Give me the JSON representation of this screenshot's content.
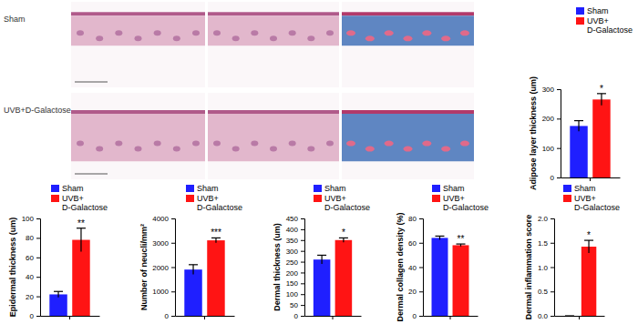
{
  "figure": {
    "row_labels": [
      "Sham",
      "UVB+D-Galactose"
    ]
  },
  "chart_data": [
    {
      "type": "bar",
      "y_label": "Adipose layer thickness (um)",
      "categories": [
        null
      ],
      "legend": "top",
      "grid": false,
      "series": [
        {
          "name": "Sham",
          "color": "#1f1fff",
          "values": [
            175
          ],
          "errors": [
            18
          ]
        },
        {
          "name": "UVB+ D-Galactose",
          "color": "#ff1414",
          "values": [
            265
          ],
          "errors": [
            20
          ]
        }
      ],
      "annotation": "*",
      "ylim": [
        0,
        300
      ],
      "yticks": [
        0,
        100,
        200,
        300
      ]
    },
    {
      "type": "bar",
      "y_label": "Epidermal thickness (um)",
      "categories": [
        null
      ],
      "legend": "top",
      "grid": false,
      "series": [
        {
          "name": "Sham",
          "color": "#1f1fff",
          "values": [
            22
          ],
          "errors": [
            3
          ]
        },
        {
          "name": "UVB+ D-Galactose",
          "color": "#ff1414",
          "values": [
            78
          ],
          "errors": [
            12
          ]
        }
      ],
      "annotation": "**",
      "ylim": [
        0,
        100
      ],
      "yticks": [
        0,
        20,
        40,
        60,
        80,
        100
      ]
    },
    {
      "type": "bar",
      "y_label": "Number of neucli/mm²",
      "categories": [
        null
      ],
      "legend": "top",
      "grid": false,
      "series": [
        {
          "name": "Sham",
          "color": "#1f1fff",
          "values": [
            1900
          ],
          "errors": [
            200
          ]
        },
        {
          "name": "UVB+ D-Galactose",
          "color": "#ff1414",
          "values": [
            3100
          ],
          "errors": [
            100
          ]
        }
      ],
      "annotation": "***",
      "ylim": [
        0,
        4000
      ],
      "yticks": [
        0,
        1000,
        2000,
        3000,
        4000
      ]
    },
    {
      "type": "bar",
      "y_label": "Dermal thickness (um)",
      "categories": [
        null
      ],
      "legend": "top",
      "grid": false,
      "series": [
        {
          "name": "Sham",
          "color": "#1f1fff",
          "values": [
            260
          ],
          "errors": [
            20
          ]
        },
        {
          "name": "UVB+ D-Galactose",
          "color": "#ff1414",
          "values": [
            350
          ],
          "errors": [
            10
          ]
        }
      ],
      "annotation": "*",
      "ylim": [
        0,
        450
      ],
      "yticks": [
        0,
        50,
        100,
        150,
        200,
        250,
        300,
        350,
        400,
        450
      ]
    },
    {
      "type": "bar",
      "y_label": "Dermal collagen density (%)",
      "categories": [
        null
      ],
      "legend": "top",
      "grid": false,
      "series": [
        {
          "name": "Sham",
          "color": "#1f1fff",
          "values": [
            64
          ],
          "errors": [
            1.5
          ]
        },
        {
          "name": "UVB+ D-Galactose",
          "color": "#ff1414",
          "values": [
            58
          ],
          "errors": [
            1
          ]
        }
      ],
      "annotation": "**",
      "ylim": [
        0,
        80
      ],
      "yticks": [
        0,
        20,
        40,
        60,
        80
      ]
    },
    {
      "type": "bar",
      "y_label": "Dermal inflammation score",
      "categories": [
        null
      ],
      "legend": "top",
      "grid": false,
      "series": [
        {
          "name": "Sham",
          "color": "#1f1fff",
          "values": [
            0
          ],
          "errors": [
            0
          ]
        },
        {
          "name": "UVB+ D-Galactose",
          "color": "#ff1414",
          "values": [
            1.42
          ],
          "errors": [
            0.13
          ]
        }
      ],
      "annotation": "*",
      "ylim": [
        0,
        2
      ],
      "yticks": [
        {
          "value": 0,
          "label": "0.0"
        },
        0.5,
        {
          "value": 1,
          "label": "1.0"
        },
        1.5,
        {
          "value": 2,
          "label": "2.0"
        }
      ]
    }
  ]
}
